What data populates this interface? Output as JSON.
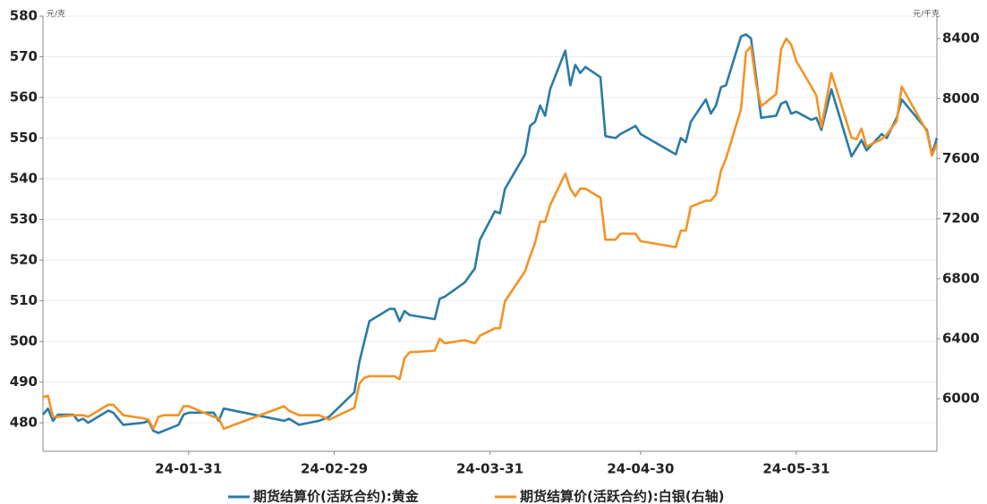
{
  "chart_data": {
    "type": "line",
    "y_unit": "元/克",
    "y2_unit": "元/千克",
    "x": [
      "24-01-02",
      "24-01-03",
      "24-01-04",
      "24-01-05",
      "24-01-08",
      "24-01-09",
      "24-01-10",
      "24-01-11",
      "24-01-15",
      "24-01-16",
      "24-01-18",
      "24-01-22",
      "24-01-23",
      "24-01-24",
      "24-01-25",
      "24-01-26",
      "24-01-29",
      "24-01-30",
      "24-01-31",
      "24-02-05",
      "24-02-06",
      "24-02-07",
      "24-02-19",
      "24-02-20",
      "24-02-22",
      "24-02-26",
      "24-02-28",
      "24-03-04",
      "24-03-05",
      "24-03-06",
      "24-03-07",
      "24-03-11",
      "24-03-12",
      "24-03-13",
      "24-03-14",
      "24-03-15",
      "24-03-20",
      "24-03-21",
      "24-03-22",
      "24-03-26",
      "24-03-28",
      "24-03-29",
      "24-04-01",
      "24-04-02",
      "24-04-03",
      "24-04-07",
      "24-04-08",
      "24-04-09",
      "24-04-10",
      "24-04-11",
      "24-04-12",
      "24-04-15",
      "24-04-16",
      "24-04-17",
      "24-04-18",
      "24-04-19",
      "24-04-22",
      "24-04-23",
      "24-04-25",
      "24-04-26",
      "24-04-29",
      "24-04-30",
      "24-05-07",
      "24-05-08",
      "24-05-09",
      "24-05-10",
      "24-05-13",
      "24-05-14",
      "24-05-15",
      "24-05-16",
      "24-05-17",
      "24-05-20",
      "24-05-21",
      "24-05-22",
      "24-05-23",
      "24-05-24",
      "24-05-27",
      "24-05-28",
      "24-05-29",
      "24-05-30",
      "24-05-31",
      "24-06-03",
      "24-06-04",
      "24-06-05",
      "24-06-07",
      "24-06-11",
      "24-06-12",
      "24-06-13",
      "24-06-14",
      "24-06-17",
      "24-06-18",
      "24-06-20",
      "24-06-21",
      "24-06-26",
      "24-06-27",
      "24-06-28"
    ],
    "xlim": [
      "24-01-02",
      "24-06-28"
    ],
    "xticks": [
      "24-01-31",
      "24-02-29",
      "24-03-31",
      "24-04-30",
      "24-05-31"
    ],
    "series": [
      {
        "name": "期货结算价(活跃合约):黄金",
        "color": "#2a7ba6",
        "values": [
          482,
          483.5,
          480.5,
          482,
          482,
          480.5,
          481,
          480,
          483,
          482.5,
          479.5,
          480,
          480.5,
          478,
          477.5,
          478,
          479.5,
          482,
          482.5,
          482.5,
          480.5,
          483.5,
          480.5,
          481,
          479.5,
          480.5,
          481.5,
          487.5,
          495,
          500,
          505,
          508,
          508,
          505,
          507.5,
          506.5,
          505.5,
          510.5,
          511,
          514.5,
          518,
          525,
          532,
          531.5,
          537.5,
          546,
          553,
          554,
          558,
          555.5,
          562,
          571.5,
          563,
          568,
          566,
          567.5,
          565,
          550.5,
          550,
          551,
          553,
          551,
          546,
          550,
          549,
          554,
          559.5,
          556,
          558,
          562.5,
          563,
          575,
          575.5,
          574.5,
          565,
          555,
          555.5,
          558.5,
          559,
          556,
          556.5,
          554.5,
          555,
          552,
          562,
          545.5,
          547.5,
          549.5,
          547,
          551,
          550,
          555,
          559.5,
          552,
          546,
          550
        ]
      },
      {
        "name": "期货结算价(活跃合约):白银(右轴)",
        "color": "#f39325",
        "axis": "y2",
        "values": [
          6010,
          6020,
          5880,
          5880,
          5890,
          5890,
          5890,
          5880,
          5960,
          5960,
          5890,
          5870,
          5860,
          5800,
          5880,
          5890,
          5890,
          5950,
          5950,
          5880,
          5870,
          5800,
          5950,
          5920,
          5890,
          5890,
          5860,
          5940,
          6100,
          6140,
          6150,
          6150,
          6150,
          6130,
          6270,
          6310,
          6320,
          6400,
          6370,
          6390,
          6370,
          6420,
          6470,
          6470,
          6650,
          6850,
          6950,
          7040,
          7180,
          7180,
          7290,
          7500,
          7400,
          7350,
          7400,
          7400,
          7340,
          7060,
          7060,
          7100,
          7100,
          7050,
          7010,
          7120,
          7120,
          7280,
          7320,
          7320,
          7360,
          7520,
          7600,
          7930,
          8310,
          8350,
          8100,
          7950,
          8030,
          8330,
          8400,
          8360,
          8250,
          8080,
          8020,
          7810,
          8170,
          7740,
          7730,
          7800,
          7680,
          7730,
          7760,
          7850,
          8080,
          7780,
          7620,
          7700
        ]
      }
    ],
    "ylim": [
      473,
      580
    ],
    "yticks": [
      480,
      490,
      500,
      510,
      520,
      530,
      540,
      550,
      560,
      570,
      580
    ],
    "y2lim": [
      5650,
      8550
    ],
    "y2ticks": [
      6000,
      6400,
      6800,
      7200,
      7600,
      8000,
      8400
    ],
    "grid": true,
    "legend": "bottom"
  }
}
